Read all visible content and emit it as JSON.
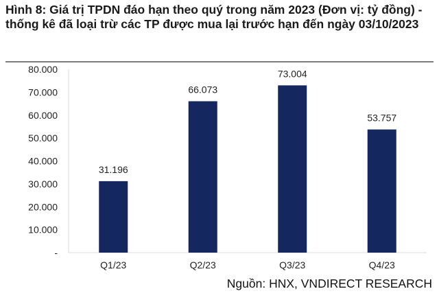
{
  "title": "Hình 8: Giá trị TPDN đáo hạn theo quý trong năm 2023 (Đơn vị: tỷ đồng) - thống kê đã loại trừ các TP được mua lại trước hạn đến ngày 03/10/2023",
  "source": "Nguồn: HNX, VNDIRECT RESEARCH",
  "chart_data": {
    "type": "bar",
    "categories": [
      "Q1/23",
      "Q2/23",
      "Q3/23",
      "Q4/23"
    ],
    "values": [
      31196,
      66073,
      73004,
      53757
    ],
    "value_labels": [
      "31.196",
      "66.073",
      "73.004",
      "53.757"
    ],
    "title": "",
    "xlabel": "",
    "ylabel": "",
    "ylim": [
      0,
      80000
    ],
    "y_ticks": [
      0,
      10000,
      20000,
      30000,
      40000,
      50000,
      60000,
      70000,
      80000
    ],
    "y_tick_labels": [
      "-",
      "10.000",
      "20.000",
      "30.000",
      "40.000",
      "50.000",
      "60.000",
      "70.000",
      "80.000"
    ],
    "grid": false,
    "legend": "none",
    "bar_color": "#14275e"
  }
}
